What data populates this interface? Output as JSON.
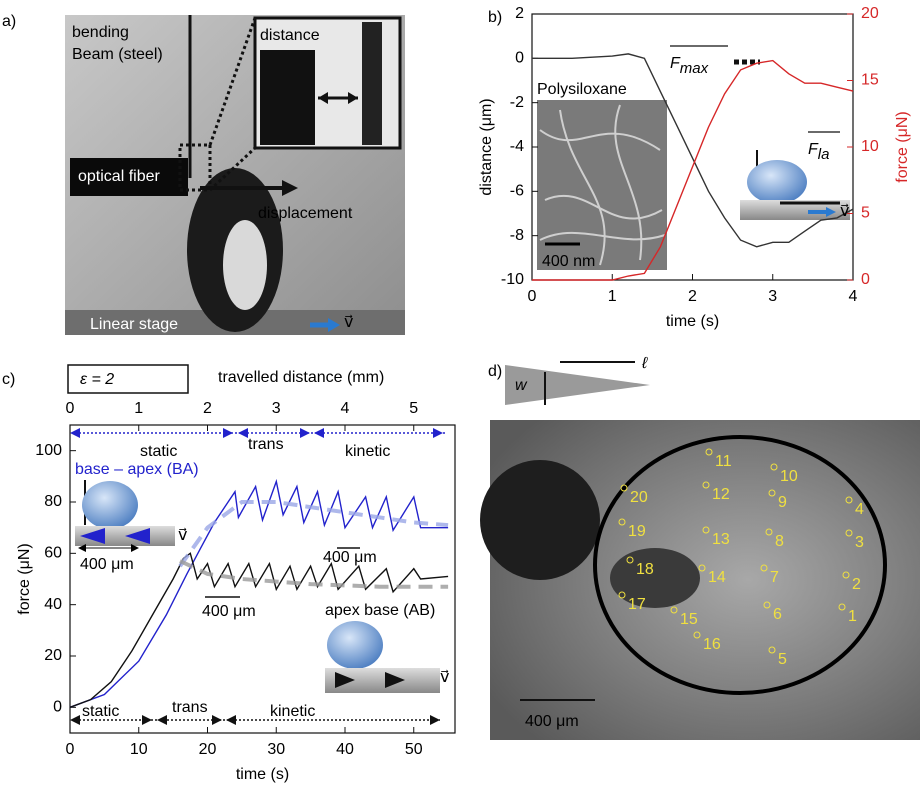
{
  "panel_labels": [
    "a)",
    "b)",
    "c)",
    "d)"
  ],
  "photo_a": {
    "beam_label_1": "bending",
    "beam_label_2": "Beam (steel)",
    "inset_label": "distance",
    "fiber_label": "optical fiber",
    "displacement_label": "displacement",
    "stage_label": "Linear stage",
    "velocity_label": "v⃗"
  },
  "photo_d": {
    "width_label": "w",
    "length_label": "ℓ",
    "scale_label": "400 μm",
    "marker_labels": [
      "1",
      "2",
      "3",
      "4",
      "5",
      "6",
      "7",
      "8",
      "9",
      "10",
      "11",
      "12",
      "13",
      "14",
      "15",
      "16",
      "17",
      "18",
      "19",
      "20"
    ]
  },
  "chart_data": [
    {
      "type": "line",
      "xlabel": "time (s)",
      "ylabel": "distance (μm)",
      "y2label": "force (μN)",
      "y2color": "#d62728",
      "xlim": [
        0,
        4
      ],
      "xticks": [
        0,
        1,
        2,
        3,
        4
      ],
      "ylim": [
        -10,
        2
      ],
      "yticks": [
        -10,
        -8,
        -6,
        -4,
        -2,
        0,
        2
      ],
      "y2lim": [
        0,
        20
      ],
      "y2ticks": [
        0,
        5,
        10,
        15,
        20
      ],
      "x": [
        0,
        0.5,
        1,
        1.2,
        1.4,
        1.6,
        1.8,
        2,
        2.2,
        2.4,
        2.6,
        2.8,
        3,
        3.2,
        3.4,
        3.6,
        3.8,
        4
      ],
      "series": [
        {
          "color": "#333333",
          "values": [
            0,
            0,
            0.1,
            0.2,
            0,
            -1.5,
            -3,
            -4.5,
            -6,
            -7.2,
            -8.2,
            -8.5,
            -8.3,
            -8.3,
            -7.8,
            -7.3,
            -7.2,
            -6.8
          ]
        },
        {
          "color": "#d62728",
          "axis": "y2",
          "values": [
            0,
            0,
            0,
            0.3,
            0.5,
            2.5,
            5.5,
            8.5,
            11.5,
            14,
            15.8,
            16.3,
            16.5,
            15.5,
            14.8,
            14.8,
            14.5,
            14.2
          ]
        }
      ],
      "annotations": {
        "fmax": {
          "base": "F",
          "sub": "max"
        },
        "fla": {
          "base": "F",
          "sub": "la"
        },
        "inset_title": "Polysiloxane",
        "inset_scale": "400 nm",
        "velocity": "v⃗"
      }
    },
    {
      "type": "line",
      "xlabel": "time (s)",
      "ylabel": "force (μN)",
      "x2label": "travelled distance (mm)",
      "xlim": [
        0,
        56
      ],
      "xticks": [
        0,
        10,
        20,
        30,
        40,
        50
      ],
      "x2lim": [
        0,
        5.6
      ],
      "x2ticks": [
        0,
        1,
        2,
        3,
        4,
        5
      ],
      "ylim": [
        -10,
        110
      ],
      "yticks": [
        0,
        20,
        40,
        60,
        80,
        100
      ],
      "series": [
        {
          "name": "base – apex (BA)",
          "color": "#2222cc",
          "x": [
            0,
            5,
            10,
            14,
            17,
            19,
            21,
            23,
            24,
            24.5,
            27,
            28,
            30,
            31,
            33,
            34,
            36,
            37,
            39,
            40,
            43,
            44,
            46,
            47,
            50,
            51,
            55
          ],
          "values": [
            0,
            5,
            18,
            36,
            52,
            62,
            72,
            80,
            84,
            74,
            86,
            73,
            88,
            75,
            86,
            72,
            84,
            71,
            84,
            70,
            82,
            70,
            82,
            69,
            82,
            70,
            70
          ]
        },
        {
          "name": "apex base (AB)",
          "color": "#111111",
          "x": [
            0,
            3,
            6,
            9,
            12,
            15,
            16.5,
            17.5,
            18,
            18.5,
            20,
            21,
            23,
            24,
            26,
            27,
            29,
            30,
            32,
            33,
            35,
            36,
            38,
            39,
            42,
            43,
            46,
            47,
            50,
            51,
            55
          ],
          "values": [
            0,
            3,
            10,
            22,
            36,
            50,
            58,
            60,
            55,
            50,
            56,
            47,
            56,
            47,
            56,
            47,
            56,
            46,
            55,
            46,
            55,
            47,
            56,
            46,
            55,
            46,
            54,
            45,
            54,
            50,
            51
          ]
        },
        {
          "color": "#9aa6e6",
          "line_style": "dashed",
          "x": [
            16,
            20,
            25,
            30,
            40,
            50,
            55
          ],
          "values": [
            55,
            70,
            80,
            80,
            76,
            72,
            71
          ]
        },
        {
          "color": "#9a9a9a",
          "line_style": "dashed",
          "x": [
            16,
            20,
            25,
            35,
            45,
            55
          ],
          "values": [
            57,
            52,
            50,
            48,
            47,
            47
          ]
        }
      ],
      "annotations": {
        "epsilon": "ε = 2",
        "top_phases": [
          "static",
          "trans",
          "kinetic"
        ],
        "bottom_phases": [
          "static",
          "trans",
          "kinetic"
        ],
        "scale_labels": [
          "400 μm",
          "400 μm",
          "400 μm"
        ],
        "velocity_labels": [
          "v⃗",
          "v⃗"
        ]
      }
    }
  ]
}
